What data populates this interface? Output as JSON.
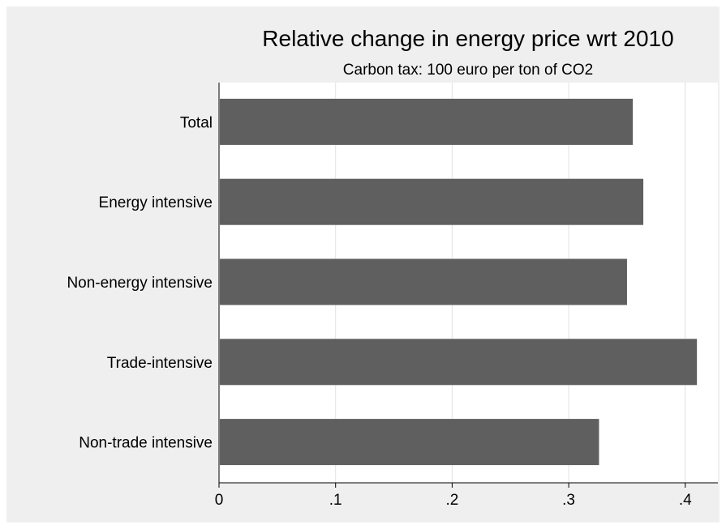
{
  "chart_data": {
    "type": "bar",
    "orientation": "horizontal",
    "title": "Relative change in energy price wrt 2010",
    "subtitle": "Carbon tax: 100 euro per ton of CO2",
    "categories": [
      "Total",
      "Energy intensive",
      "Non-energy intensive",
      "Trade-intensive",
      "Non-trade intensive"
    ],
    "values": [
      0.355,
      0.364,
      0.35,
      0.41,
      0.326
    ],
    "xlim": [
      0,
      0.41
    ],
    "xticks": [
      0,
      0.1,
      0.2,
      0.3,
      0.4
    ],
    "xtick_labels": [
      "0",
      ".1",
      ".2",
      ".3",
      ".4"
    ],
    "xlabel": "",
    "ylabel": "",
    "grid": "vertical",
    "legend": "none"
  },
  "colors": {
    "bar": "#5f5f5f",
    "plot_background": "#ffffff",
    "outer_background": "#efefef",
    "grid": "#e2e2e2",
    "axis": "#000000"
  }
}
